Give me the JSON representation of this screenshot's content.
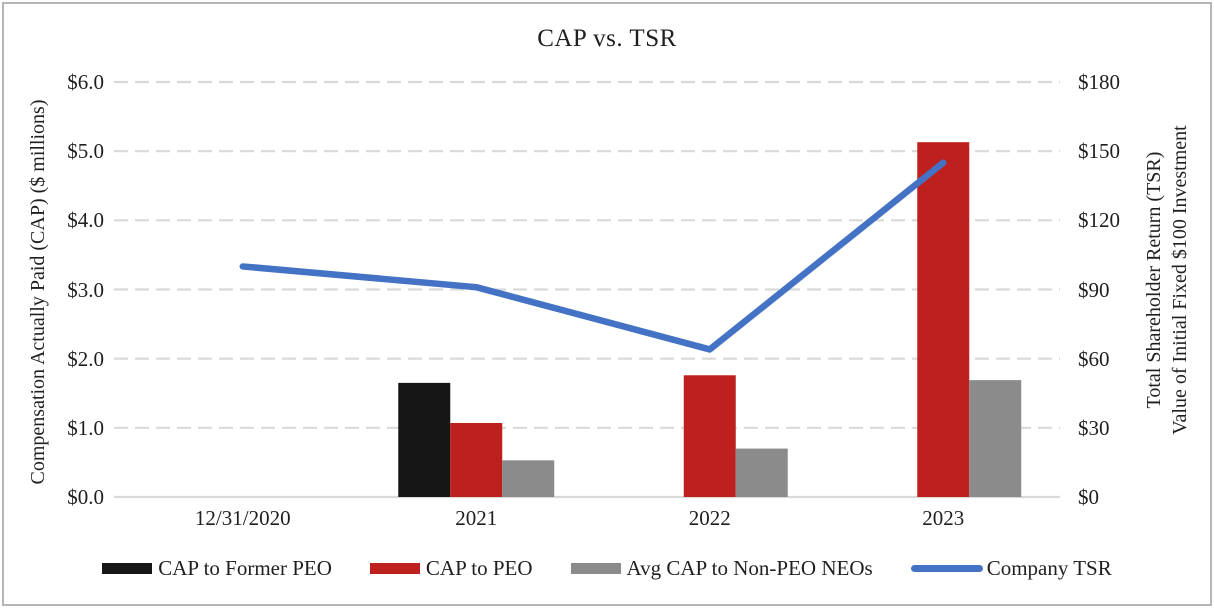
{
  "title": "CAP vs. TSR",
  "colors": {
    "former_peo": "#161616",
    "peo": "#be211d",
    "non_peo": "#8b8b8b",
    "tsr": "#4472c4",
    "gridline": "#d9d9d9",
    "axis_line": "#d9d9d9",
    "text": "#1f1f1f",
    "border": "#b5b5b7"
  },
  "chart_data": {
    "type": "bar+line combo",
    "title": "CAP vs. TSR",
    "categories": [
      "12/31/2020",
      "2021",
      "2022",
      "2023"
    ],
    "series": [
      {
        "name": "CAP to Former PEO",
        "type": "bar",
        "axis": "left",
        "color_key": "former_peo",
        "values": [
          null,
          1.65,
          null,
          null
        ]
      },
      {
        "name": "CAP to PEO",
        "type": "bar",
        "axis": "left",
        "color_key": "peo",
        "values": [
          null,
          1.07,
          1.76,
          5.13
        ]
      },
      {
        "name": "Avg CAP to Non-PEO NEOs",
        "type": "bar",
        "axis": "left",
        "color_key": "non_peo",
        "values": [
          null,
          0.53,
          0.7,
          1.69
        ]
      },
      {
        "name": "Company TSR",
        "type": "line",
        "axis": "right",
        "color_key": "tsr",
        "values": [
          100,
          91,
          64,
          145
        ]
      }
    ],
    "left_axis": {
      "label": "Compensation Actually Paid (CAP) ($ millions)",
      "ticks": [
        "$6.0",
        "$5.0",
        "$4.0",
        "$3.0",
        "$2.0",
        "$1.0",
        "$0.0"
      ],
      "min": 0,
      "max": 6
    },
    "right_axis": {
      "label_line1": "Total Shareholder Return (TSR)",
      "label_line2": "Value of Initial Fixed $100 Investment",
      "ticks": [
        "$180",
        "$150",
        "$120",
        "$90",
        "$60",
        "$30",
        "$0"
      ],
      "min": 0,
      "max": 180
    },
    "grid": "dashed horizontal gridlines",
    "legend_position": "bottom"
  }
}
